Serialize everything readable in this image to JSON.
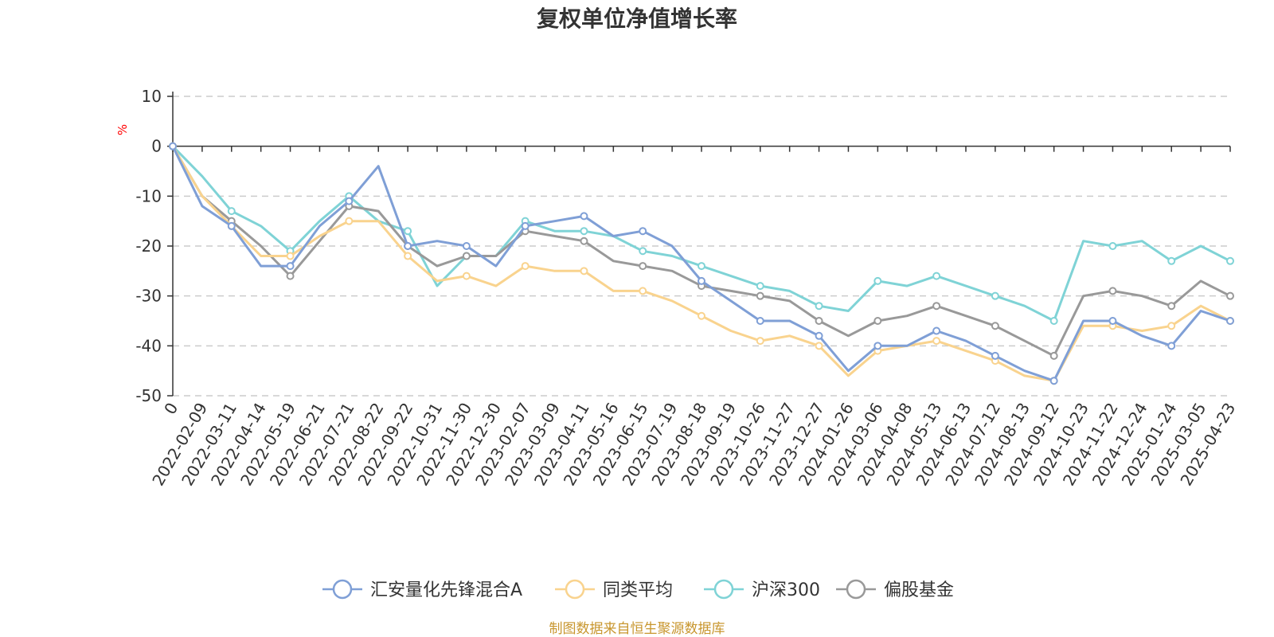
{
  "chart_data": {
    "type": "line",
    "title": "复权单位净值增长率",
    "ylabel": "%",
    "ylim": [
      -50,
      10
    ],
    "yticks": [
      10,
      0,
      -10,
      -20,
      -30,
      -40,
      -50
    ],
    "grid": true,
    "legend_position": "bottom",
    "source": "制图数据来自恒生聚源数据库",
    "x_tick_labels": [
      "0",
      "2022-02-09",
      "2022-03-11",
      "2022-04-14",
      "2022-05-19",
      "2022-06-21",
      "2022-07-21",
      "2022-08-22",
      "2022-09-22",
      "2022-10-31",
      "2022-11-30",
      "2022-12-30",
      "2023-02-07",
      "2023-03-09",
      "2023-04-11",
      "2023-05-16",
      "2023-06-15",
      "2023-07-19",
      "2023-08-18",
      "2023-09-19",
      "2023-10-26",
      "2023-11-27",
      "2023-12-27",
      "2024-01-26",
      "2024-03-06",
      "2024-04-08",
      "2024-05-13",
      "2024-06-13",
      "2024-07-12",
      "2024-08-13",
      "2024-09-12",
      "2024-10-23",
      "2024-11-22",
      "2024-12-24",
      "2025-01-24",
      "2025-03-05",
      "2025-04-23"
    ],
    "x_index": [
      0,
      1,
      2,
      3,
      4,
      5,
      6,
      7,
      8,
      9,
      10,
      11,
      12,
      13,
      14,
      15,
      16,
      17,
      18,
      19,
      20,
      21,
      22,
      23,
      24,
      25,
      26,
      27,
      28,
      29,
      30,
      31,
      32,
      33,
      34,
      35,
      36
    ],
    "series": [
      {
        "name": "汇安量化先锋混合A",
        "color": "#7f9fd6",
        "values": [
          0,
          -12,
          -16,
          -24,
          -24,
          -16,
          -11,
          -4,
          -20,
          -19,
          -20,
          -24,
          -16,
          -15,
          -14,
          -18,
          -17,
          -20,
          -27,
          -31,
          -35,
          -35,
          -38,
          -45,
          -40,
          -40,
          -37,
          -39,
          -42,
          -45,
          -47,
          -35,
          -35,
          -38,
          -40,
          -33,
          -35
        ]
      },
      {
        "name": "同类平均",
        "color": "#f9d38e",
        "values": [
          0,
          -10,
          -16,
          -22,
          -22,
          -18,
          -15,
          -15,
          -22,
          -27,
          -26,
          -28,
          -24,
          -25,
          -25,
          -29,
          -29,
          -31,
          -34,
          -37,
          -39,
          -38,
          -40,
          -46,
          -41,
          -40,
          -39,
          -41,
          -43,
          -46,
          -47,
          -36,
          -36,
          -37,
          -36,
          -32,
          -35
        ]
      },
      {
        "name": "沪深300",
        "color": "#7fd3d6",
        "values": [
          0,
          -6,
          -13,
          -16,
          -21,
          -15,
          -10,
          -15,
          -17,
          -28,
          -22,
          -22,
          -15,
          -17,
          -17,
          -18,
          -21,
          -22,
          -24,
          -26,
          -28,
          -29,
          -32,
          -33,
          -27,
          -28,
          -26,
          -28,
          -30,
          -32,
          -35,
          -19,
          -20,
          -19,
          -23,
          -20,
          -23
        ]
      },
      {
        "name": "偏股基金",
        "color": "#999999",
        "values": [
          0,
          -10,
          -15,
          -20,
          -26,
          -19,
          -12,
          -13,
          -20,
          -24,
          -22,
          -22,
          -17,
          -18,
          -19,
          -23,
          -24,
          -25,
          -28,
          -29,
          -30,
          -31,
          -35,
          -38,
          -35,
          -34,
          -32,
          -34,
          -36,
          -39,
          -42,
          -30,
          -29,
          -30,
          -32,
          -27,
          -30
        ]
      }
    ]
  }
}
